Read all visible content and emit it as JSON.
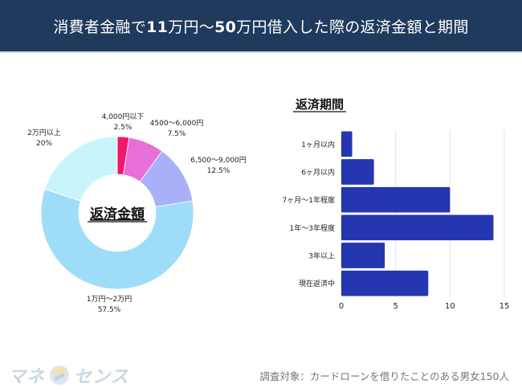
{
  "header": {
    "title_parts": [
      "消費者金融で",
      "11",
      "万円〜",
      "50",
      "万円借入した際の返済金額と期間"
    ]
  },
  "colors": {
    "header_bg": "#1f3a5c",
    "bar": "#2436b0"
  },
  "chart_data": [
    {
      "type": "pie",
      "style": "donut",
      "center_label": "返済金額",
      "slices": [
        {
          "label": "4,000円以下",
          "value": 2.5,
          "value_label": "2.5%",
          "color": "#f0186a"
        },
        {
          "label": "4500〜6,000円",
          "value": 7.5,
          "value_label": "7.5%",
          "color": "#e66fd8"
        },
        {
          "label": "6,500〜9,000円",
          "value": 12.5,
          "value_label": "12.5%",
          "color": "#aab0f8"
        },
        {
          "label": "1万円〜2万円",
          "value": 57.5,
          "value_label": "57.5%",
          "color": "#9fdcf8"
        },
        {
          "label": "2万円以上",
          "value": 20,
          "value_label": "20%",
          "color": "#c8f5fb"
        }
      ],
      "start": "top",
      "direction": "clockwise"
    },
    {
      "type": "bar",
      "orientation": "horizontal",
      "title": "返済期間",
      "categories": [
        "1ヶ月以内",
        "6ヶ月以内",
        "7ヶ月〜1年程度",
        "1年〜3年程度",
        "3年以上",
        "現在返済中"
      ],
      "values": [
        1,
        3,
        10,
        14,
        4,
        8
      ],
      "xlim": [
        0,
        15
      ],
      "xticks": [
        0,
        5,
        10,
        15
      ],
      "grid": true,
      "xlabel": "",
      "ylabel": ""
    }
  ],
  "footer": {
    "note": "調査対象：カードローンを借りたことのある男女150人",
    "logo_left": "マネ",
    "logo_right": "センス"
  }
}
